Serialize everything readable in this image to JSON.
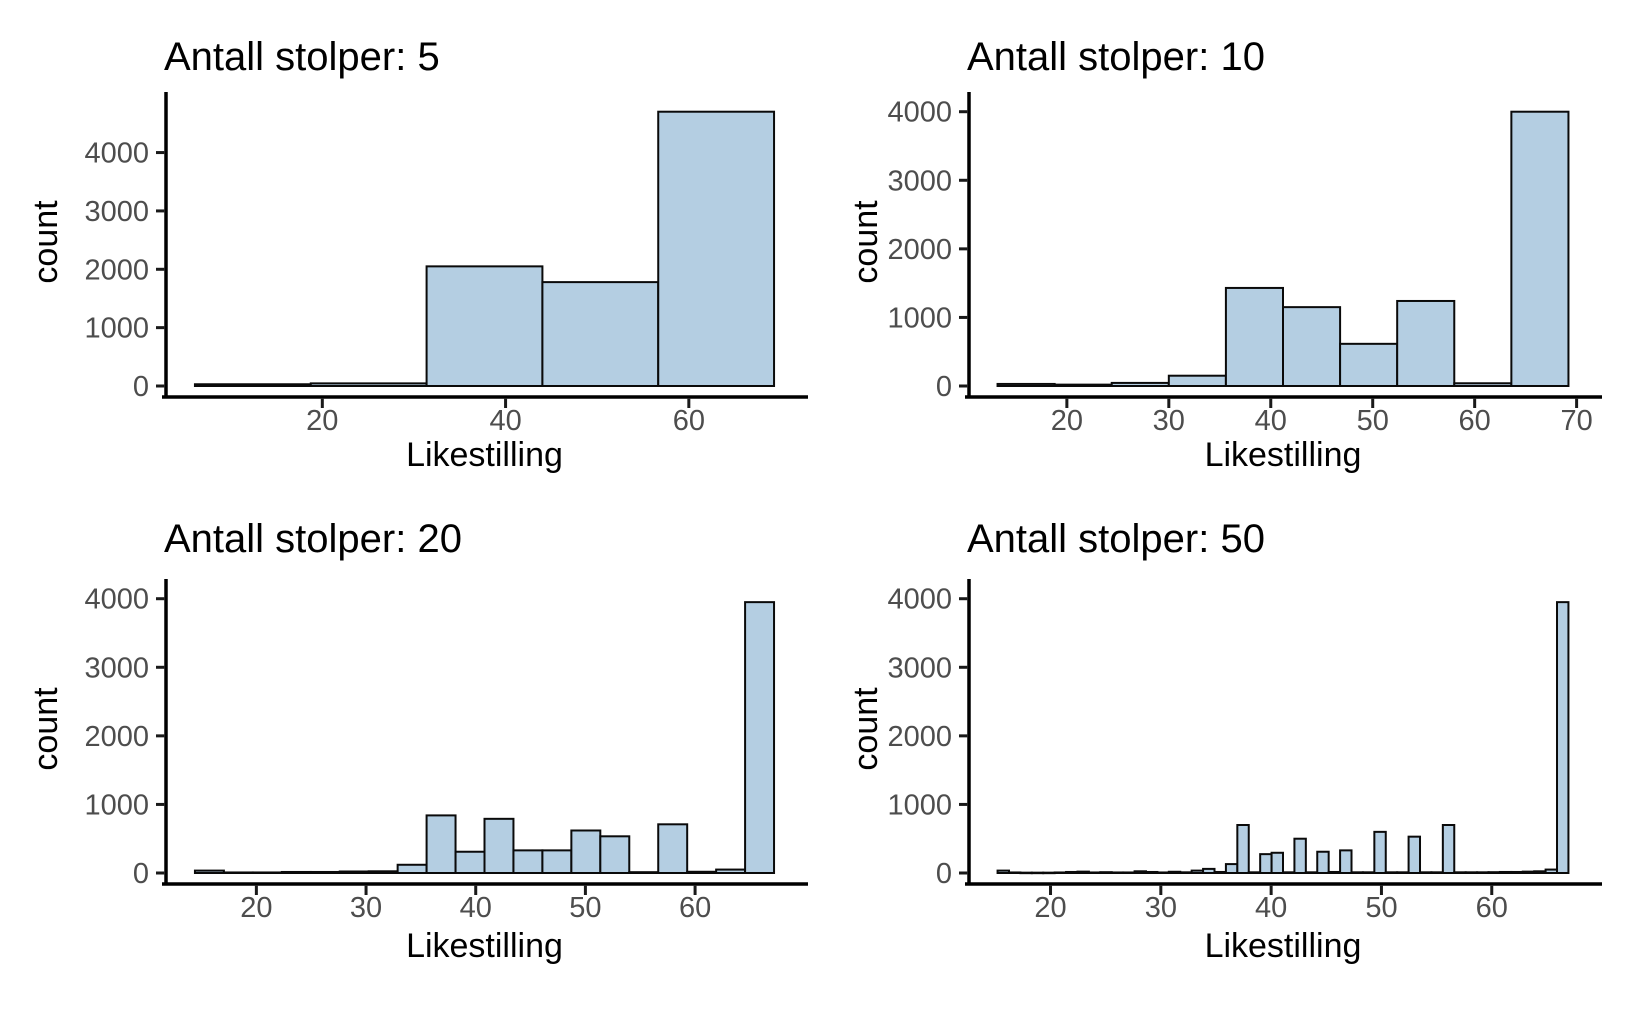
{
  "figure": {
    "background": "#ffffff",
    "layout": "2x2 facet grid of histograms",
    "legend": null,
    "grid_lines": false
  },
  "style": {
    "bar_fill": "#b4cee2",
    "bar_stroke": "#0a0a0a",
    "axis_line_color": "#000000",
    "tick_color": "#1a1a1a",
    "tick_label_color": "#4d4d4d",
    "title_color": "#000000",
    "axis_title_color": "#000000"
  },
  "chart_data": [
    {
      "type": "bar",
      "subtype": "histogram",
      "title": "Antall stolper: 5",
      "xlabel": "Likestilling",
      "ylabel": "count",
      "bin_start": 6.1,
      "bin_width": 12.64,
      "values": [
        30,
        45,
        2050,
        1780,
        4700
      ],
      "xticks": [
        20,
        40,
        60
      ],
      "yticks": [
        0,
        1000,
        2000,
        3000,
        4000
      ],
      "xlim": [
        2.94,
        72.46
      ],
      "ylim": [
        0,
        4935
      ]
    },
    {
      "type": "bar",
      "subtype": "histogram",
      "title": "Antall stolper: 10",
      "xlabel": "Likestilling",
      "ylabel": "count",
      "bin_start": 13.2,
      "bin_width": 5.6,
      "values": [
        30,
        20,
        45,
        150,
        1430,
        1150,
        615,
        1240,
        40,
        4000
      ],
      "xticks": [
        20,
        30,
        40,
        50,
        60,
        70
      ],
      "yticks": [
        0,
        1000,
        2000,
        3000,
        4000
      ],
      "xlim": [
        10.4,
        72.0
      ],
      "ylim": [
        0,
        4200
      ]
    },
    {
      "type": "bar",
      "subtype": "histogram",
      "title": "Antall stolper: 20",
      "xlabel": "Likestilling",
      "ylabel": "count",
      "bin_start": 14.4,
      "bin_width": 2.64,
      "values": [
        35,
        8,
        8,
        15,
        15,
        22,
        25,
        120,
        840,
        310,
        790,
        330,
        330,
        620,
        535,
        12,
        710,
        18,
        50,
        3950
      ],
      "xticks": [
        20,
        30,
        40,
        50,
        60
      ],
      "yticks": [
        0,
        1000,
        2000,
        3000,
        4000
      ],
      "xlim": [
        11.76,
        69.84
      ],
      "ylim": [
        0,
        4200
      ]
    },
    {
      "type": "bar",
      "subtype": "histogram",
      "title": "Antall stolper: 50",
      "xlabel": "Likestilling",
      "ylabel": "count",
      "bin_start": 15.2,
      "bin_width": 1.035,
      "values": [
        35,
        8,
        5,
        5,
        5,
        8,
        15,
        20,
        8,
        12,
        8,
        8,
        25,
        15,
        8,
        18,
        10,
        35,
        60,
        15,
        130,
        700,
        10,
        275,
        295,
        10,
        500,
        10,
        310,
        15,
        330,
        10,
        10,
        600,
        10,
        10,
        530,
        10,
        10,
        700,
        10,
        10,
        10,
        12,
        15,
        15,
        20,
        25,
        50,
        3950
      ],
      "xticks": [
        20,
        30,
        40,
        50,
        60
      ],
      "yticks": [
        0,
        1000,
        2000,
        3000,
        4000
      ],
      "xlim": [
        12.61,
        69.54
      ],
      "ylim": [
        0,
        4200
      ]
    }
  ]
}
